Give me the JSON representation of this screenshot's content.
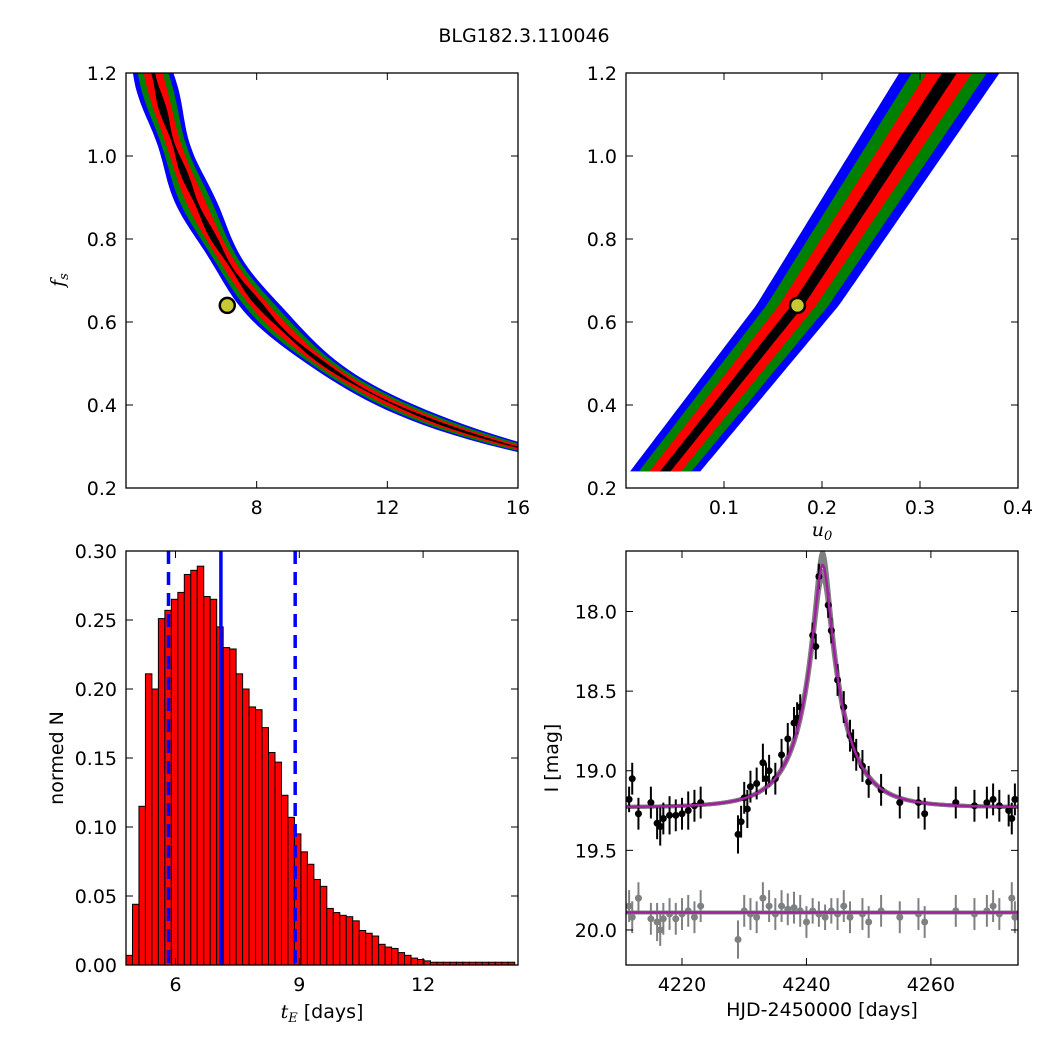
{
  "title": "BLG182.3.110046",
  "colors": {
    "sigma1": "#000000",
    "sigma2": "#ff0000",
    "sigma3": "#008000",
    "sigma4": "#0000ff",
    "best_marker_fill": "#c8c832",
    "hist_fill": "#ff0000",
    "vline": "#0000ff",
    "model": "#a020a0",
    "model_band": "#808080",
    "residuals": "#808080"
  },
  "chart_data": [
    {
      "id": "fs-vs-tE",
      "type": "heatmap",
      "xlabel": "",
      "ylabel_sym": "f",
      "ylabel_sub": "s",
      "xlim": [
        4,
        16
      ],
      "ylim": [
        0.2,
        1.2
      ],
      "xticks": [
        "8",
        "12",
        "16"
      ],
      "xtick_values": [
        8,
        12,
        16
      ],
      "yticks": [
        "0.2",
        "0.4",
        "0.6",
        "0.8",
        "1.0",
        "1.2"
      ],
      "ytick_values": [
        0.2,
        0.4,
        0.6,
        0.8,
        1.0,
        1.2
      ],
      "best_fit": [
        7.1,
        0.64
      ],
      "band_function": "x = 4.58 / fs^0.98 + 1.0 (center tE for a given fs)",
      "band_widths_days": {
        "sigma1": 0.12,
        "sigma2": 0.38,
        "sigma3": 0.62,
        "sigma4": 0.82
      },
      "fs_range": [
        0.245,
        1.2
      ]
    },
    {
      "id": "fs-vs-u0",
      "type": "heatmap",
      "xlabel_sym": "u",
      "xlabel_sub": "0",
      "xlim": [
        0.0,
        0.4
      ],
      "ylim": [
        0.2,
        1.2
      ],
      "xticks": [
        "0.1",
        "0.2",
        "0.3",
        "0.4"
      ],
      "xtick_values": [
        0.1,
        0.2,
        0.3,
        0.4
      ],
      "yticks": [
        "0.2",
        "0.4",
        "0.6",
        "0.8",
        "1.0",
        "1.2"
      ],
      "ytick_values": [
        0.2,
        0.4,
        0.6,
        0.8,
        1.0,
        1.2
      ],
      "best_fit": [
        0.175,
        0.64
      ],
      "fs_range": [
        0.24,
        1.2
      ],
      "band_points": [
        [
          0.24,
          0.04
        ],
        [
          0.64,
          0.175
        ],
        [
          1.2,
          0.33
        ]
      ],
      "band_widths_u0": {
        "sigma1": 0.006,
        "sigma2": 0.018,
        "sigma3": 0.03,
        "sigma4": 0.04
      }
    },
    {
      "id": "tE-histogram",
      "type": "bar",
      "xlabel_sym": "t",
      "xlabel_sub": "E",
      "xlabel_rest": " [days]",
      "ylabel": "normed N",
      "xlim": [
        4.8,
        14.3
      ],
      "ylim": [
        0.0,
        0.3
      ],
      "xticks": [
        "6",
        "9",
        "12"
      ],
      "xtick_values": [
        6,
        9,
        12
      ],
      "yticks": [
        "0.00",
        "0.05",
        "0.10",
        "0.15",
        "0.20",
        "0.25",
        "0.30"
      ],
      "ytick_values": [
        0.0,
        0.05,
        0.1,
        0.15,
        0.2,
        0.25,
        0.3
      ],
      "bin_start": 4.8,
      "bin_width": 0.157,
      "values": [
        0.007,
        0.044,
        0.115,
        0.211,
        0.2,
        0.251,
        0.257,
        0.265,
        0.27,
        0.283,
        0.286,
        0.289,
        0.267,
        0.265,
        0.245,
        0.23,
        0.229,
        0.211,
        0.2,
        0.187,
        0.185,
        0.172,
        0.154,
        0.147,
        0.123,
        0.107,
        0.095,
        0.082,
        0.073,
        0.062,
        0.057,
        0.041,
        0.038,
        0.036,
        0.035,
        0.032,
        0.025,
        0.023,
        0.021,
        0.015,
        0.013,
        0.012,
        0.009,
        0.007,
        0.005,
        0.004,
        0.003,
        0.002,
        0.002,
        0.002,
        0.002,
        0.002,
        0.002,
        0.002,
        0.002,
        0.002,
        0.002,
        0.002,
        0.002,
        0.002
      ],
      "vlines": [
        {
          "x": 5.83,
          "style": "dashed"
        },
        {
          "x": 7.1,
          "style": "solid"
        },
        {
          "x": 8.9,
          "style": "dashed"
        }
      ]
    },
    {
      "id": "light-curve",
      "type": "scatter",
      "xlabel": "HJD-2450000 [days]",
      "ylabel": "I [mag]",
      "xlim": [
        4211,
        4274
      ],
      "ylim": [
        20.22,
        17.62
      ],
      "xticks": [
        "4220",
        "4240",
        "4260"
      ],
      "xtick_values": [
        4220,
        4240,
        4260
      ],
      "yticks": [
        "18.0",
        "18.5",
        "19.0",
        "19.5",
        "20.0"
      ],
      "ytick_values": [
        18.0,
        18.5,
        19.0,
        19.5,
        20.0
      ],
      "model": {
        "t0": 4242.6,
        "tE": 7.1,
        "u0": 0.175,
        "fs": 0.64,
        "baseline": 19.23
      },
      "residual_offset": 19.89,
      "data_points": [
        [
          4211.5,
          19.18,
          0.08
        ],
        [
          4212.0,
          19.05,
          0.1
        ],
        [
          4213.0,
          19.27,
          0.1
        ],
        [
          4215.0,
          19.2,
          0.1
        ],
        [
          4216.0,
          19.33,
          0.1
        ],
        [
          4216.5,
          19.35,
          0.12
        ],
        [
          4217.0,
          19.3,
          0.1
        ],
        [
          4218.0,
          19.28,
          0.12
        ],
        [
          4219.0,
          19.28,
          0.1
        ],
        [
          4220.0,
          19.27,
          0.1
        ],
        [
          4221.0,
          19.25,
          0.12
        ],
        [
          4222.0,
          19.22,
          0.1
        ],
        [
          4223.0,
          19.2,
          0.1
        ],
        [
          4229.0,
          19.4,
          0.12
        ],
        [
          4229.5,
          19.32,
          0.1
        ],
        [
          4230.0,
          19.17,
          0.1
        ],
        [
          4230.5,
          19.24,
          0.12
        ],
        [
          4231.0,
          19.1,
          0.1
        ],
        [
          4232.0,
          19.08,
          0.1
        ],
        [
          4233.0,
          18.95,
          0.12
        ],
        [
          4233.5,
          19.05,
          0.1
        ],
        [
          4234.0,
          19.0,
          0.1
        ],
        [
          4235.0,
          19.05,
          0.1
        ],
        [
          4236.0,
          18.9,
          0.1
        ],
        [
          4237.0,
          18.8,
          0.1
        ],
        [
          4238.0,
          18.7,
          0.1
        ],
        [
          4238.5,
          18.67,
          0.1
        ],
        [
          4239.0,
          18.6,
          0.08
        ],
        [
          4241.0,
          18.15,
          0.08
        ],
        [
          4241.5,
          18.22,
          0.08
        ],
        [
          4242.0,
          17.78,
          0.08
        ],
        [
          4243.5,
          17.96,
          0.08
        ],
        [
          4244.0,
          18.12,
          0.08
        ],
        [
          4245.0,
          18.43,
          0.1
        ],
        [
          4246.0,
          18.6,
          0.1
        ],
        [
          4247.0,
          18.78,
          0.1
        ],
        [
          4247.5,
          18.84,
          0.1
        ],
        [
          4248.0,
          18.9,
          0.1
        ],
        [
          4249.0,
          18.97,
          0.1
        ],
        [
          4250.0,
          19.07,
          0.1
        ],
        [
          4252.0,
          19.12,
          0.1
        ],
        [
          4255.0,
          19.2,
          0.1
        ],
        [
          4258.0,
          19.2,
          0.1
        ],
        [
          4259.0,
          19.27,
          0.1
        ],
        [
          4264.0,
          19.2,
          0.1
        ],
        [
          4267.0,
          19.22,
          0.1
        ],
        [
          4269.0,
          19.2,
          0.1
        ],
        [
          4270.0,
          19.18,
          0.1
        ],
        [
          4271.0,
          19.22,
          0.1
        ],
        [
          4272.5,
          19.25,
          0.1
        ],
        [
          4273.0,
          19.3,
          0.1
        ],
        [
          4273.5,
          19.18,
          0.1
        ]
      ],
      "residual_points": [
        [
          4211.5,
          19.85,
          0.1
        ],
        [
          4212.0,
          19.92,
          0.1
        ],
        [
          4213.0,
          19.8,
          0.1
        ],
        [
          4215.0,
          19.93,
          0.1
        ],
        [
          4216.0,
          19.95,
          0.12
        ],
        [
          4216.5,
          20.0,
          0.1
        ],
        [
          4217.0,
          19.93,
          0.1
        ],
        [
          4218.0,
          19.9,
          0.1
        ],
        [
          4219.0,
          19.93,
          0.1
        ],
        [
          4220.0,
          19.9,
          0.1
        ],
        [
          4221.0,
          19.88,
          0.1
        ],
        [
          4222.0,
          19.92,
          0.1
        ],
        [
          4223.0,
          19.85,
          0.1
        ],
        [
          4229.0,
          20.06,
          0.12
        ],
        [
          4230.0,
          19.88,
          0.1
        ],
        [
          4231.0,
          19.9,
          0.1
        ],
        [
          4232.0,
          19.92,
          0.1
        ],
        [
          4233.0,
          19.8,
          0.1
        ],
        [
          4234.0,
          19.85,
          0.1
        ],
        [
          4235.0,
          19.9,
          0.1
        ],
        [
          4236.0,
          19.85,
          0.1
        ],
        [
          4237.0,
          19.87,
          0.1
        ],
        [
          4238.0,
          19.86,
          0.1
        ],
        [
          4239.0,
          19.88,
          0.1
        ],
        [
          4240.0,
          19.95,
          0.1
        ],
        [
          4241.0,
          19.88,
          0.08
        ],
        [
          4242.0,
          19.9,
          0.08
        ],
        [
          4243.0,
          19.92,
          0.08
        ],
        [
          4244.0,
          19.88,
          0.08
        ],
        [
          4245.0,
          19.9,
          0.1
        ],
        [
          4246.0,
          19.85,
          0.1
        ],
        [
          4247.0,
          19.92,
          0.1
        ],
        [
          4249.0,
          19.9,
          0.1
        ],
        [
          4250.0,
          19.95,
          0.1
        ],
        [
          4252.0,
          19.88,
          0.1
        ],
        [
          4255.0,
          19.92,
          0.1
        ],
        [
          4258.0,
          19.9,
          0.1
        ],
        [
          4259.0,
          19.95,
          0.1
        ],
        [
          4264.0,
          19.88,
          0.1
        ],
        [
          4267.0,
          19.9,
          0.1
        ],
        [
          4269.0,
          19.88,
          0.1
        ],
        [
          4270.0,
          19.85,
          0.1
        ],
        [
          4271.0,
          19.9,
          0.1
        ],
        [
          4273.0,
          19.8,
          0.1
        ],
        [
          4273.5,
          19.92,
          0.1
        ]
      ]
    }
  ]
}
